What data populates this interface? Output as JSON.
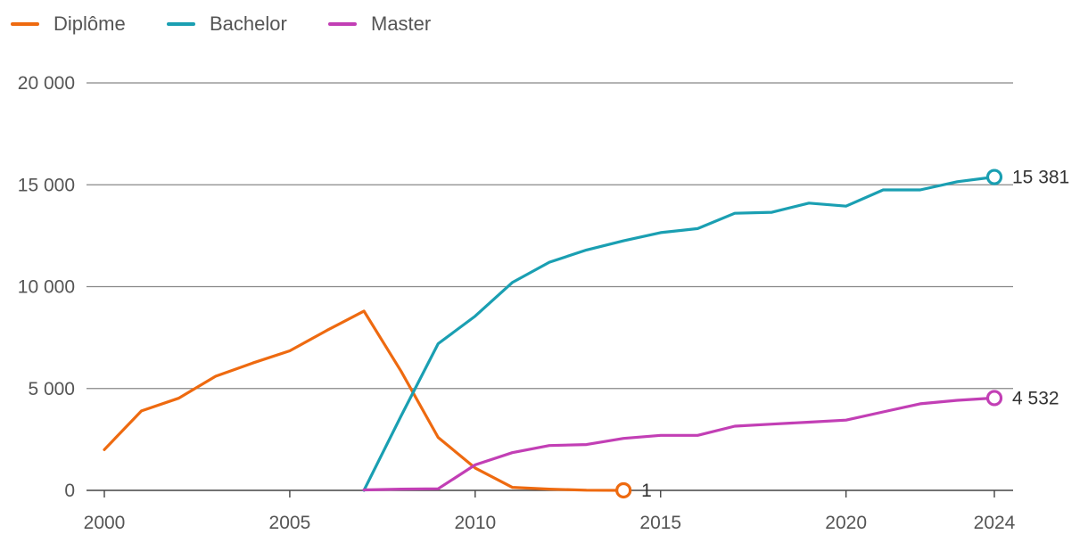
{
  "chart_data": {
    "type": "line",
    "title": "",
    "xlabel": "",
    "ylabel": "",
    "xlim": [
      2000,
      2024
    ],
    "ylim": [
      0,
      20000
    ],
    "x_ticks": [
      2000,
      2005,
      2010,
      2015,
      2020,
      2024
    ],
    "x_tick_labels": [
      "2000",
      "2005",
      "2010",
      "2015",
      "2020",
      "2024"
    ],
    "y_ticks": [
      0,
      5000,
      10000,
      15000,
      20000
    ],
    "y_tick_labels": [
      "0",
      "5 000",
      "10 000",
      "15 000",
      "20 000"
    ],
    "grid": "horizontal",
    "legend_position": "top-left",
    "series": [
      {
        "name": "Diplôme",
        "color": "#ee6a10",
        "points": [
          [
            2000,
            2000
          ],
          [
            2001,
            3900
          ],
          [
            2002,
            4520
          ],
          [
            2003,
            5600
          ],
          [
            2004,
            6250
          ],
          [
            2005,
            6850
          ],
          [
            2006,
            7850
          ],
          [
            2007,
            8800
          ],
          [
            2008,
            5850
          ],
          [
            2009,
            2600
          ],
          [
            2010,
            1100
          ],
          [
            2011,
            150
          ],
          [
            2012,
            60
          ],
          [
            2013,
            10
          ],
          [
            2014,
            1
          ]
        ],
        "end_label": "1"
      },
      {
        "name": "Bachelor",
        "color": "#1a9fb2",
        "points": [
          [
            2007,
            0
          ],
          [
            2008,
            3650
          ],
          [
            2009,
            7200
          ],
          [
            2010,
            8550
          ],
          [
            2011,
            10200
          ],
          [
            2012,
            11200
          ],
          [
            2013,
            11800
          ],
          [
            2014,
            12250
          ],
          [
            2015,
            12650
          ],
          [
            2016,
            12850
          ],
          [
            2017,
            13600
          ],
          [
            2018,
            13650
          ],
          [
            2019,
            14100
          ],
          [
            2020,
            13950
          ],
          [
            2021,
            14750
          ],
          [
            2022,
            14750
          ],
          [
            2023,
            15150
          ],
          [
            2024,
            15381
          ]
        ],
        "end_label": "15 381"
      },
      {
        "name": "Master",
        "color": "#c23fb5",
        "points": [
          [
            2007,
            20
          ],
          [
            2008,
            60
          ],
          [
            2009,
            80
          ],
          [
            2010,
            1250
          ],
          [
            2011,
            1850
          ],
          [
            2012,
            2200
          ],
          [
            2013,
            2250
          ],
          [
            2014,
            2550
          ],
          [
            2015,
            2700
          ],
          [
            2016,
            2700
          ],
          [
            2017,
            3150
          ],
          [
            2018,
            3250
          ],
          [
            2019,
            3350
          ],
          [
            2020,
            3450
          ],
          [
            2021,
            3850
          ],
          [
            2022,
            4250
          ],
          [
            2023,
            4420
          ],
          [
            2024,
            4532
          ]
        ],
        "end_label": "4 532"
      }
    ]
  }
}
